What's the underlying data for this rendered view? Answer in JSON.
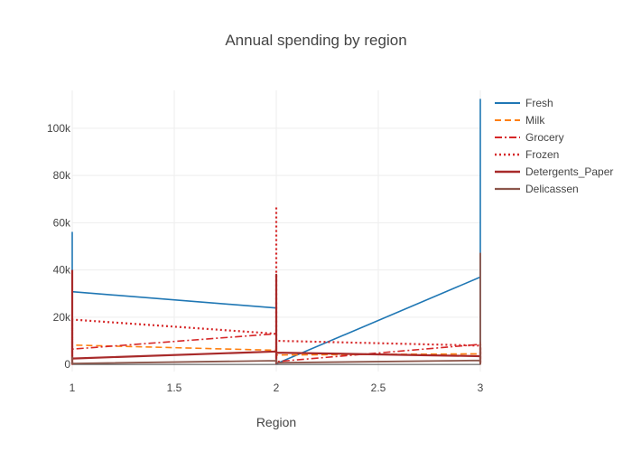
{
  "chart_data": {
    "type": "line",
    "title": "Annual spending by region",
    "xlabel": "Region",
    "ylabel": "",
    "xlim": [
      1,
      3
    ],
    "ylim": [
      -3000,
      116000
    ],
    "x_ticks": [
      {
        "value": 1,
        "label": "1"
      },
      {
        "value": 1.5,
        "label": "1.5"
      },
      {
        "value": 2,
        "label": "2"
      },
      {
        "value": 2.5,
        "label": "2.5"
      },
      {
        "value": 3,
        "label": "3"
      }
    ],
    "y_ticks": [
      {
        "value": 0,
        "label": "0"
      },
      {
        "value": 20000,
        "label": "20k"
      },
      {
        "value": 40000,
        "label": "40k"
      },
      {
        "value": 60000,
        "label": "60k"
      },
      {
        "value": 80000,
        "label": "80k"
      },
      {
        "value": 100000,
        "label": "100k"
      }
    ],
    "grid": true,
    "legend_position": "top-right",
    "series": [
      {
        "name": "Fresh",
        "color": "#1f77b4",
        "dash": "solid",
        "width": 1.6,
        "values": [
          [
            1,
            56100
          ],
          [
            1,
            300
          ],
          [
            1,
            30800
          ],
          [
            2,
            23900
          ],
          [
            2,
            38000
          ],
          [
            2,
            18600
          ],
          [
            2,
            300
          ],
          [
            3,
            37000
          ],
          [
            3,
            17200
          ],
          [
            3,
            112200
          ],
          [
            3,
            500
          ],
          [
            3,
            35000
          ],
          [
            3,
            10000
          ]
        ]
      },
      {
        "name": "Milk",
        "color": "#ff7f0e",
        "dash": "dashed",
        "width": 1.6,
        "values": [
          [
            1,
            8500
          ],
          [
            1,
            800
          ],
          [
            1,
            8200
          ],
          [
            2,
            6000
          ],
          [
            2,
            2500
          ],
          [
            2,
            5500
          ],
          [
            2,
            1000
          ],
          [
            2,
            4000
          ],
          [
            3,
            4500
          ],
          [
            3,
            1200
          ],
          [
            3,
            7500
          ],
          [
            3,
            3500
          ]
        ]
      },
      {
        "name": "Grocery",
        "color": "#d62728",
        "dash": "dashdot",
        "width": 1.6,
        "values": [
          [
            1,
            7000
          ],
          [
            1,
            1500
          ],
          [
            1,
            6500
          ],
          [
            2,
            13000
          ],
          [
            2,
            3000
          ],
          [
            2,
            11500
          ],
          [
            2,
            1200
          ],
          [
            3,
            8500
          ],
          [
            3,
            2000
          ],
          [
            3,
            9500
          ],
          [
            3,
            5000
          ]
        ]
      },
      {
        "name": "Frozen",
        "color": "#d62728",
        "dash": "dotted",
        "width": 2.2,
        "values": [
          [
            1,
            18600
          ],
          [
            1,
            500
          ],
          [
            1,
            19000
          ],
          [
            2,
            13000
          ],
          [
            2,
            67000
          ],
          [
            2,
            400
          ],
          [
            2,
            10000
          ],
          [
            3,
            8000
          ],
          [
            3,
            1000
          ],
          [
            3,
            8500
          ],
          [
            3,
            4000
          ]
        ]
      },
      {
        "name": "Detergents_Paper",
        "color": "#a82a2a",
        "dash": "solid",
        "width": 2.2,
        "values": [
          [
            1,
            40000
          ],
          [
            1,
            200
          ],
          [
            1,
            2500
          ],
          [
            2,
            5500
          ],
          [
            2,
            1000
          ],
          [
            2,
            38000
          ],
          [
            2,
            500
          ],
          [
            2,
            5000
          ],
          [
            3,
            3500
          ],
          [
            3,
            500
          ],
          [
            3,
            7000
          ],
          [
            3,
            1500
          ]
        ]
      },
      {
        "name": "Delicassen",
        "color": "#8c564b",
        "dash": "solid",
        "width": 1.8,
        "values": [
          [
            1,
            1500
          ],
          [
            1,
            3000
          ],
          [
            1,
            400
          ],
          [
            2,
            1600
          ],
          [
            2,
            2000
          ],
          [
            2,
            700
          ],
          [
            3,
            1700
          ],
          [
            3,
            100
          ],
          [
            3,
            2200
          ],
          [
            3,
            900
          ],
          [
            3,
            47000
          ],
          [
            3,
            1000
          ]
        ]
      }
    ]
  }
}
